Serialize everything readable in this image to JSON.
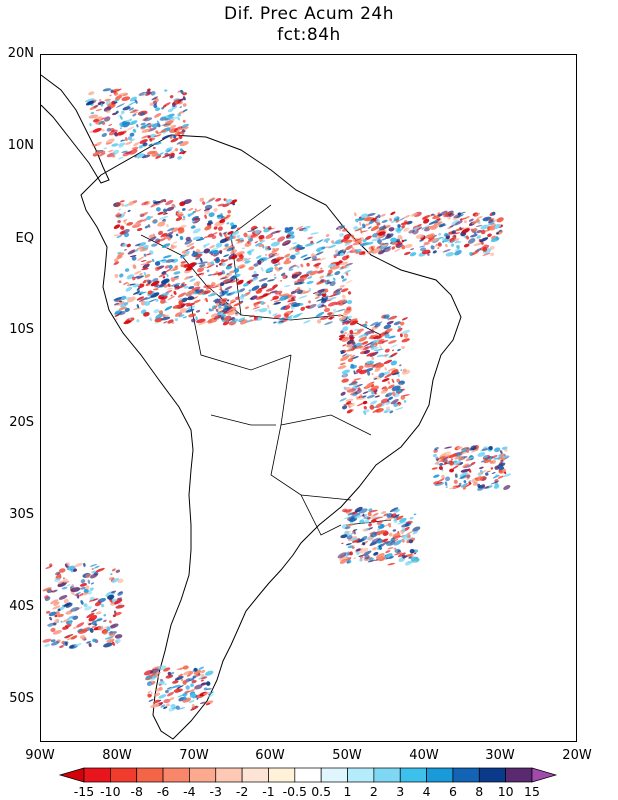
{
  "title": {
    "line1": "Dif. Prec Acum 24h",
    "line2": "fct:84h"
  },
  "lat_labels": [
    "20N",
    "10N",
    "EQ",
    "10S",
    "20S",
    "30S",
    "40S",
    "50S"
  ],
  "lon_labels": [
    "90W",
    "80W",
    "70W",
    "60W",
    "50W",
    "40W",
    "30W",
    "20W"
  ],
  "colorbar": {
    "labels": [
      "-15",
      "-10",
      "-8",
      "-6",
      "-4",
      "-3",
      "-2",
      "-1",
      "-0.5",
      "0.5",
      "1",
      "2",
      "3",
      "4",
      "6",
      "8",
      "10",
      "15"
    ],
    "colors": [
      "#d4000a",
      "#e8141e",
      "#f03c2c",
      "#f46446",
      "#f8866a",
      "#fbaa90",
      "#fdc9b4",
      "#fee4d4",
      "#fff2d8",
      "#ffffff",
      "#dff6ff",
      "#b4ecfc",
      "#7ed8f4",
      "#3ec0ec",
      "#1a9ad8",
      "#1364b4",
      "#0c3a8a",
      "#5a2a70",
      "#a04aac"
    ]
  }
}
